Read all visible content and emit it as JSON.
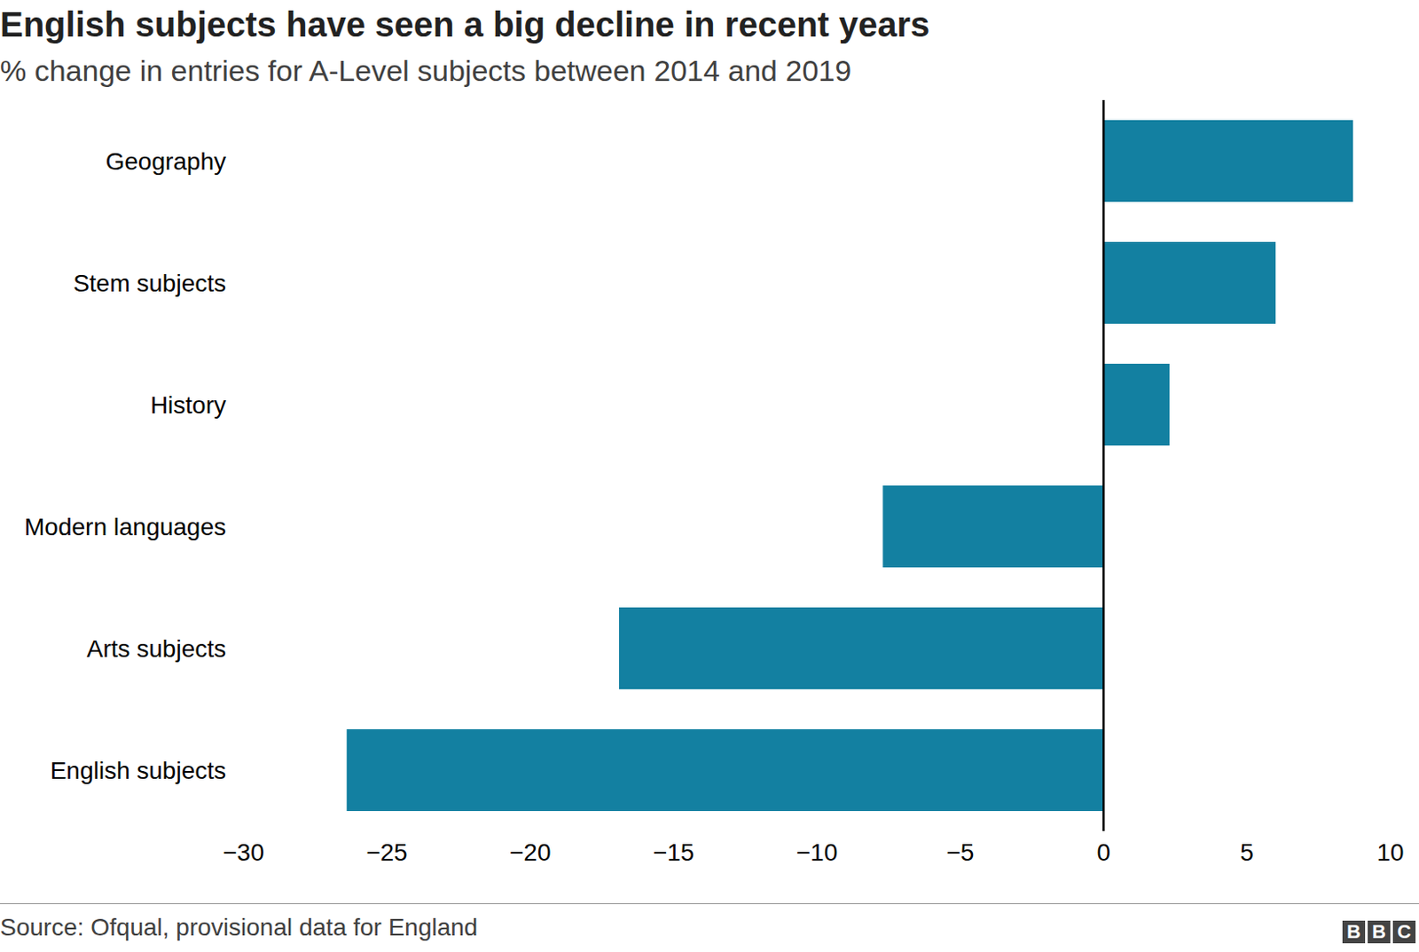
{
  "chart_data": {
    "type": "bar",
    "title": "English subjects have seen a big decline in recent years",
    "subtitle": "% change in entries for A-Level subjects between 2014 and 2019",
    "source": "Source: Ofqual, provisional data for England",
    "logo": "BBC",
    "categories": [
      "Geography",
      "Stem subjects",
      "History",
      "Modern languages",
      "Arts subjects",
      "English subjects"
    ],
    "values": [
      8.7,
      6.0,
      2.3,
      -7.7,
      -16.9,
      -26.4
    ],
    "color": "#1380a1",
    "orientation": "horizontal",
    "grid": false,
    "xlim": [
      -30,
      10
    ],
    "xticks": [
      {
        "value": -30,
        "label": "−30"
      },
      {
        "value": -25,
        "label": "−25"
      },
      {
        "value": -20,
        "label": "−20"
      },
      {
        "value": -15,
        "label": "−15"
      },
      {
        "value": -10,
        "label": "−10"
      },
      {
        "value": -5,
        "label": "−5"
      },
      0,
      5,
      10
    ]
  }
}
